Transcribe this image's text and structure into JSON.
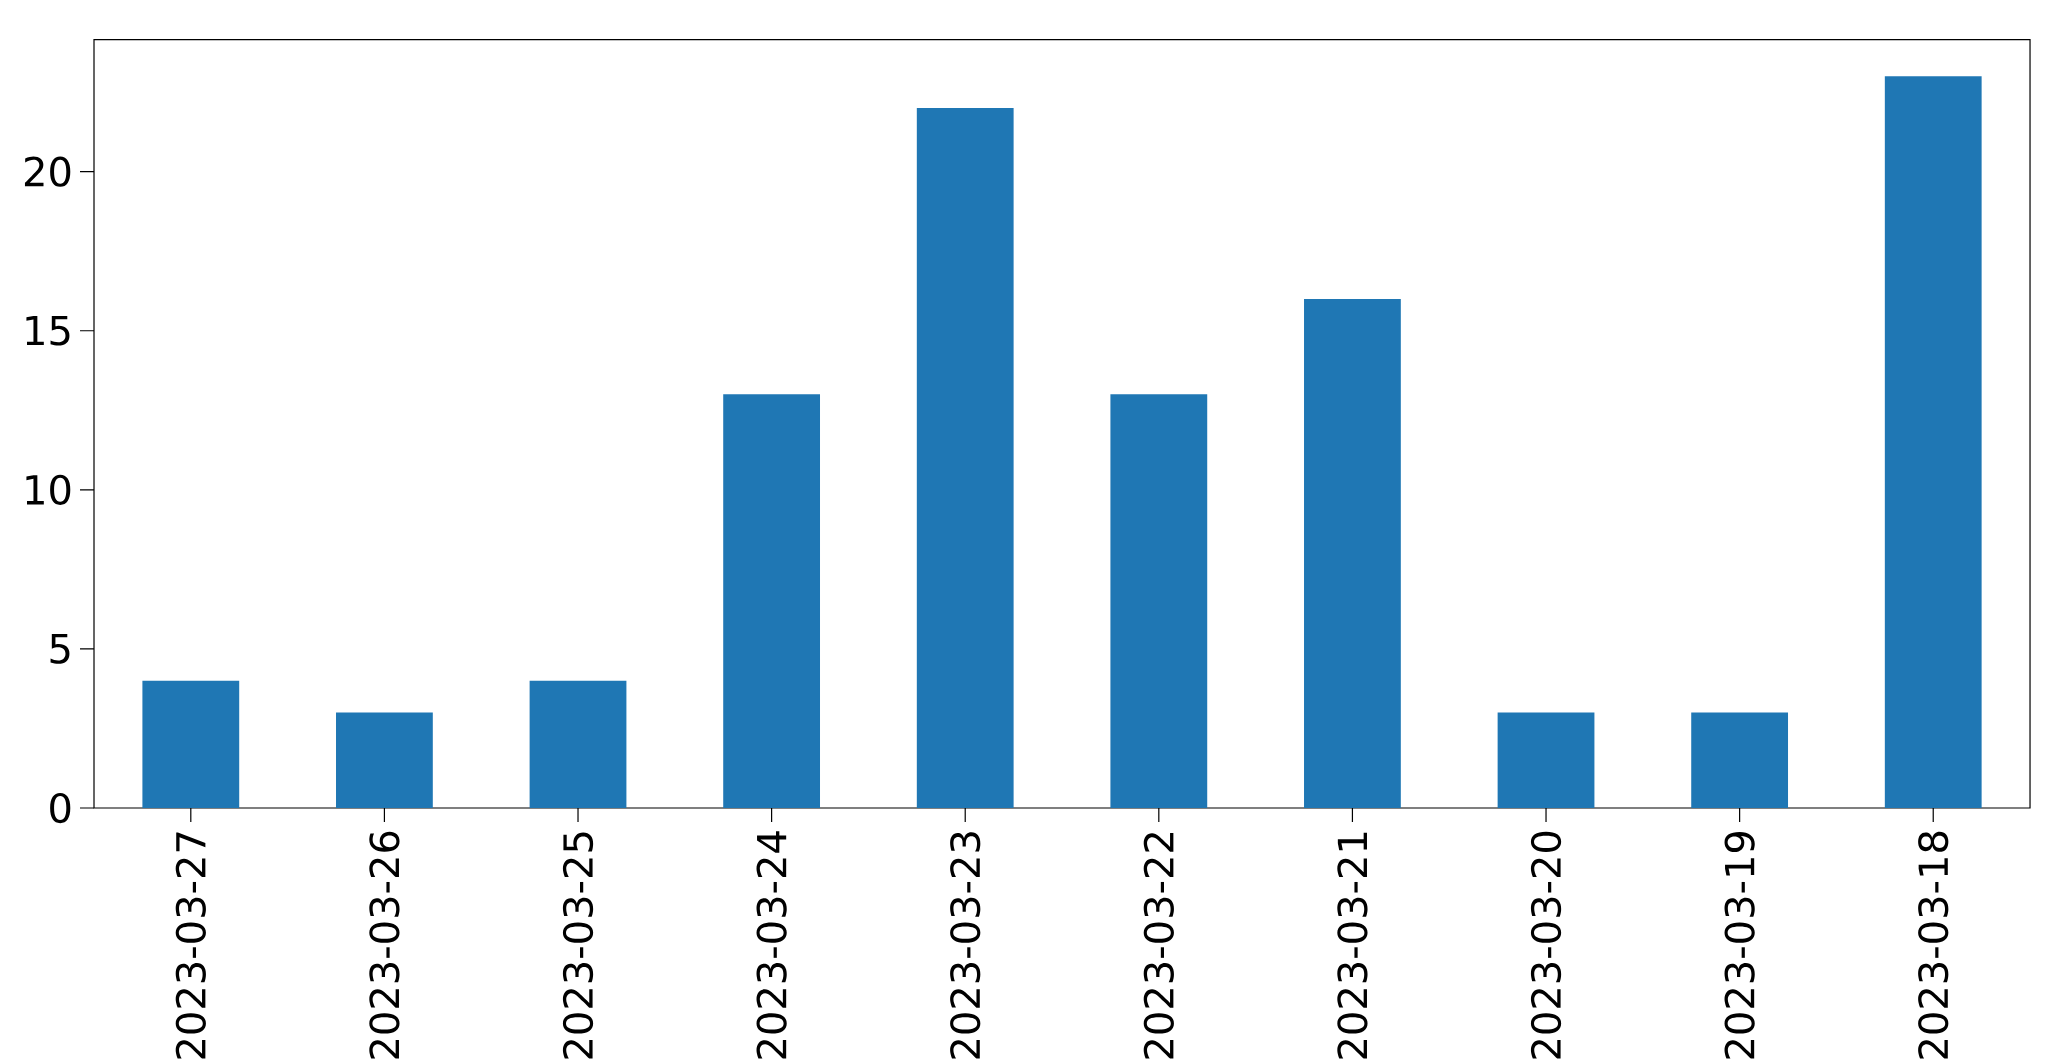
{
  "chart_data": {
    "type": "bar",
    "categories": [
      "2023-03-27",
      "2023-03-26",
      "2023-03-25",
      "2023-03-24",
      "2023-03-23",
      "2023-03-22",
      "2023-03-21",
      "2023-03-20",
      "2023-03-19",
      "2023-03-18"
    ],
    "values": [
      4,
      3,
      4,
      13,
      22,
      13,
      16,
      3,
      3,
      23
    ],
    "color": "#1f77b4",
    "ylim": [
      0,
      24.15
    ],
    "yticks": [
      0,
      5,
      10,
      15,
      20
    ]
  }
}
